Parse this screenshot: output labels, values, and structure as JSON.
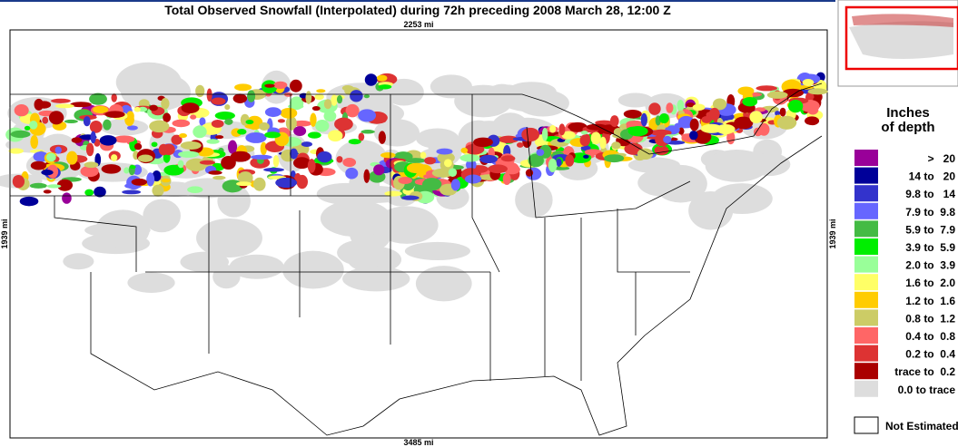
{
  "header": {
    "title": "Total Observed Snowfall (Interpolated) during 72h preceding 2008 March 28, 12:00 Z"
  },
  "map": {
    "top_scale": "2253 mi",
    "left_scale": "1939 mi",
    "right_scale": "1939 mi",
    "bottom_scale": "3485 mi"
  },
  "legend": {
    "title_line1": "Inches",
    "title_line2": "of depth",
    "entries": [
      {
        "label": ">   20",
        "color": "#990099"
      },
      {
        "label": "14 to   20",
        "color": "#000099"
      },
      {
        "label": "9.8 to   14",
        "color": "#3333cc"
      },
      {
        "label": "7.9 to  9.8",
        "color": "#6666ff"
      },
      {
        "label": "5.9 to  7.9",
        "color": "#44bb44"
      },
      {
        "label": "3.9 to  5.9",
        "color": "#00ee00"
      },
      {
        "label": "2.0 to  3.9",
        "color": "#99ff99"
      },
      {
        "label": "1.6 to  2.0",
        "color": "#ffff66"
      },
      {
        "label": "1.2 to  1.6",
        "color": "#ffcc00"
      },
      {
        "label": "0.8 to  1.2",
        "color": "#cccc66"
      },
      {
        "label": "0.4 to  0.8",
        "color": "#ff6666"
      },
      {
        "label": "0.2 to  0.4",
        "color": "#dd3333"
      },
      {
        "label": "trace to  0.2",
        "color": "#aa0000"
      },
      {
        "label": "0.0 to trace",
        "color": "#dddddd"
      }
    ],
    "not_estimated": "Not Estimated"
  }
}
